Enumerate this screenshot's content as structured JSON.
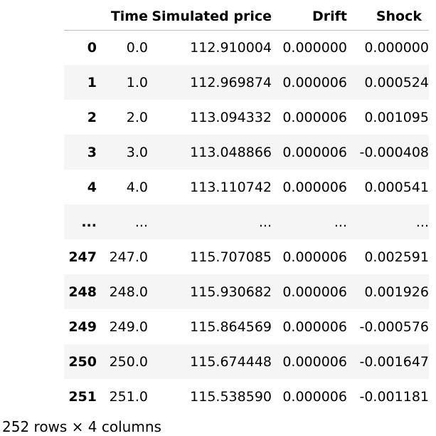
{
  "table": {
    "columns": {
      "index": "",
      "time": "Time",
      "price": "Simulated price",
      "drift": "Drift",
      "shock": "Shock"
    },
    "rows": [
      {
        "index": "0",
        "time": "0.0",
        "price": "112.910004",
        "drift": "0.000000",
        "shock": "0.000000"
      },
      {
        "index": "1",
        "time": "1.0",
        "price": "112.969874",
        "drift": "0.000006",
        "shock": "0.000524"
      },
      {
        "index": "2",
        "time": "2.0",
        "price": "113.094332",
        "drift": "0.000006",
        "shock": "0.001095"
      },
      {
        "index": "3",
        "time": "3.0",
        "price": "113.048866",
        "drift": "0.000006",
        "shock": "-0.000408"
      },
      {
        "index": "4",
        "time": "4.0",
        "price": "113.110742",
        "drift": "0.000006",
        "shock": "0.000541"
      },
      {
        "index": "...",
        "time": "...",
        "price": "...",
        "drift": "...",
        "shock": "..."
      },
      {
        "index": "247",
        "time": "247.0",
        "price": "115.707085",
        "drift": "0.000006",
        "shock": "0.002591"
      },
      {
        "index": "248",
        "time": "248.0",
        "price": "115.930682",
        "drift": "0.000006",
        "shock": "0.001926"
      },
      {
        "index": "249",
        "time": "249.0",
        "price": "115.864569",
        "drift": "0.000006",
        "shock": "-0.000576"
      },
      {
        "index": "250",
        "time": "250.0",
        "price": "115.674448",
        "drift": "0.000006",
        "shock": "-0.001647"
      },
      {
        "index": "251",
        "time": "251.0",
        "price": "115.538590",
        "drift": "0.000006",
        "shock": "-0.001181"
      }
    ]
  },
  "footer": {
    "shape_text": "252 rows × 4 columns"
  },
  "colors": {
    "stripe": "#f5f5f5",
    "border": "#c0c0c0",
    "text": "#000000"
  }
}
